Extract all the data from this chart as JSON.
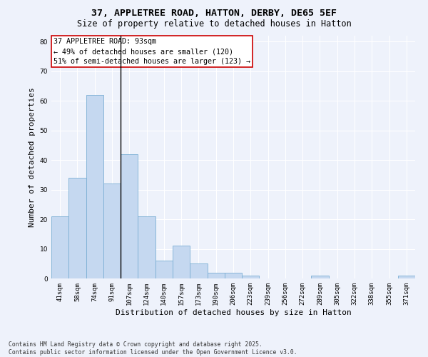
{
  "title1": "37, APPLETREE ROAD, HATTON, DERBY, DE65 5EF",
  "title2": "Size of property relative to detached houses in Hatton",
  "xlabel": "Distribution of detached houses by size in Hatton",
  "ylabel": "Number of detached properties",
  "categories": [
    "41sqm",
    "58sqm",
    "74sqm",
    "91sqm",
    "107sqm",
    "124sqm",
    "140sqm",
    "157sqm",
    "173sqm",
    "190sqm",
    "206sqm",
    "223sqm",
    "239sqm",
    "256sqm",
    "272sqm",
    "289sqm",
    "305sqm",
    "322sqm",
    "338sqm",
    "355sqm",
    "371sqm"
  ],
  "values": [
    21,
    34,
    62,
    32,
    42,
    21,
    6,
    11,
    5,
    2,
    2,
    1,
    0,
    0,
    0,
    1,
    0,
    0,
    0,
    0,
    1
  ],
  "bar_color": "#c5d8f0",
  "bar_edge_color": "#7bafd4",
  "property_line_index": 3,
  "annotation_title": "37 APPLETREE ROAD: 93sqm",
  "annotation_line2": "← 49% of detached houses are smaller (120)",
  "annotation_line3": "51% of semi-detached houses are larger (123) →",
  "annotation_box_color": "#ffffff",
  "annotation_box_edge": "#cc0000",
  "vline_color": "#000000",
  "ylim": [
    0,
    82
  ],
  "yticks": [
    0,
    10,
    20,
    30,
    40,
    50,
    60,
    70,
    80
  ],
  "background_color": "#eef2fb",
  "grid_color": "#ffffff",
  "footer": "Contains HM Land Registry data © Crown copyright and database right 2025.\nContains public sector information licensed under the Open Government Licence v3.0.",
  "title_fontsize": 9.5,
  "subtitle_fontsize": 8.5,
  "axis_label_fontsize": 8,
  "tick_fontsize": 6.5,
  "annotation_fontsize": 7.2,
  "footer_fontsize": 5.8
}
